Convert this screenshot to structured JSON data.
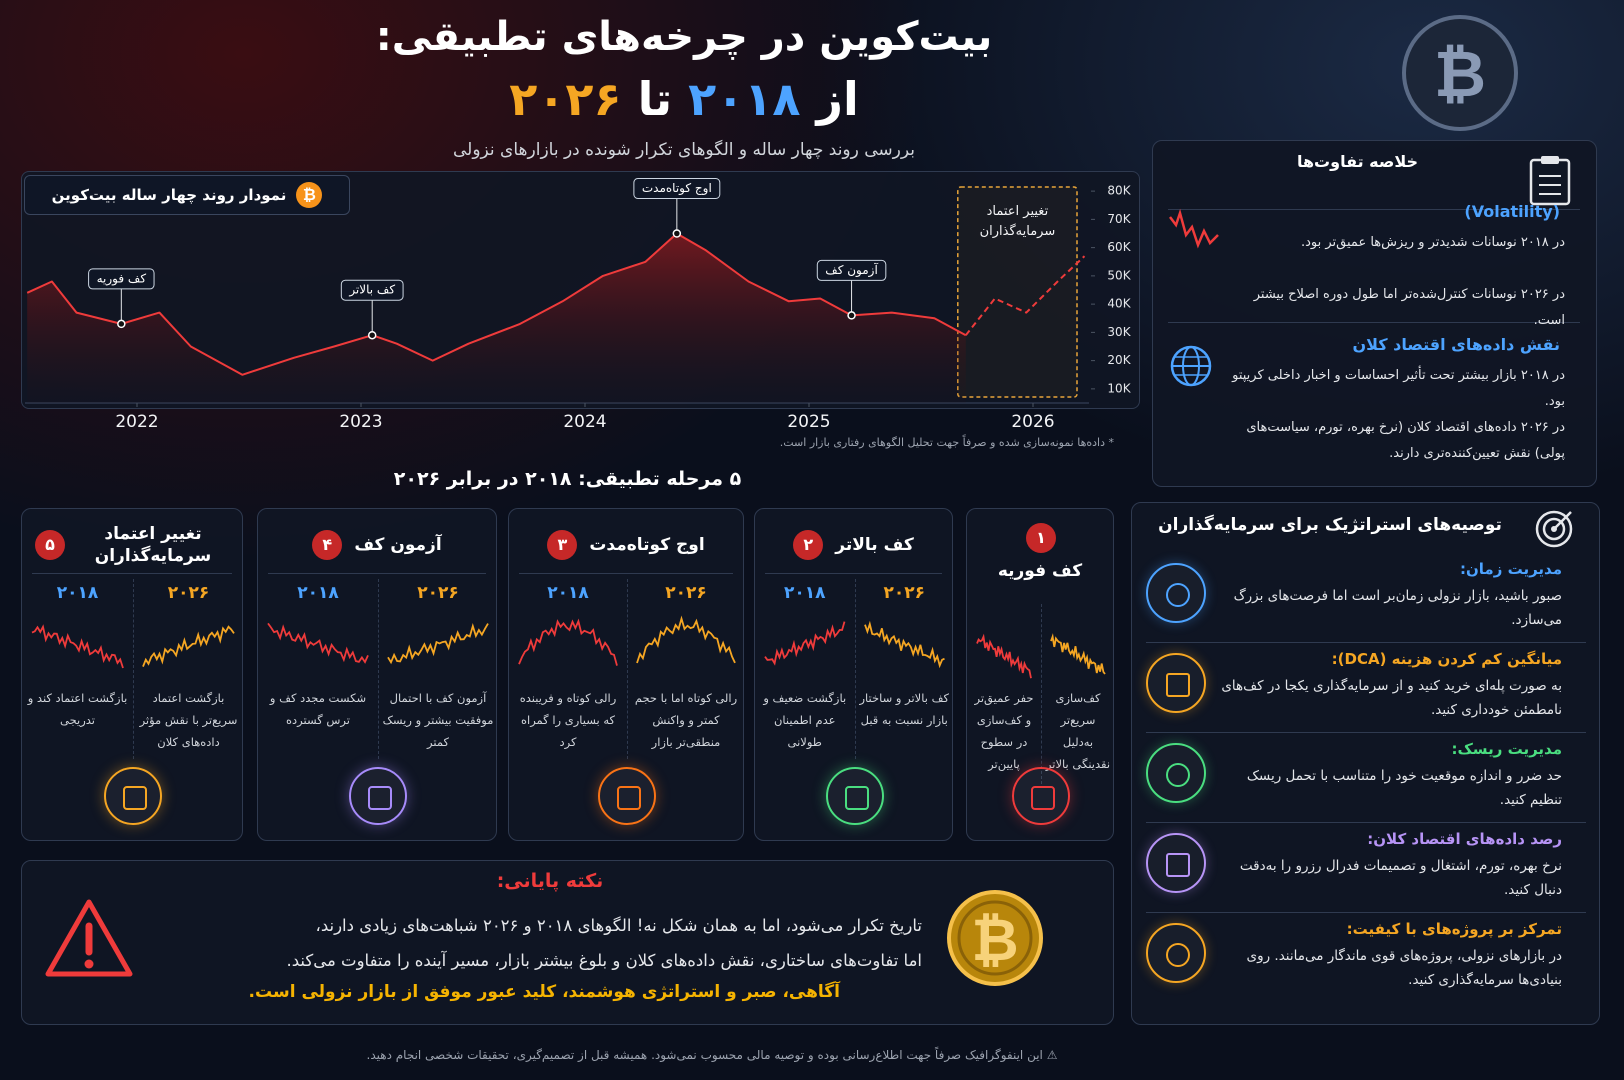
{
  "header": {
    "title": "بیت‌کوین در چرخه‌های تطبیقی:",
    "title_from": "از",
    "year_start": "۲۰۱۸",
    "title_to": "تا",
    "year_end": "۲۰۲۶",
    "subtitle": "بررسی روند چهار ساله و الگوهای تکرار شونده در بازارهای نزولی"
  },
  "chart_data": {
    "type": "line",
    "title": "نمودار روند چهار ساله بیت‌کوین",
    "note": "* داده‌ها نمونه‌سازی شده و صرفاً جهت تحلیل الگوهای رفتاری بازار است.",
    "x": [
      2021.51,
      2021.62,
      2021.73,
      2021.93,
      2022.1,
      2022.24,
      2022.47,
      2022.7,
      2022.88,
      2023.05,
      2023.16,
      2023.32,
      2023.48,
      2023.71,
      2023.9,
      2024.08,
      2024.27,
      2024.41,
      2024.54,
      2024.73,
      2024.91,
      2025.05,
      2025.19,
      2025.37,
      2025.56,
      2025.7,
      2025.83,
      2025.97,
      2026.11,
      2026.23
    ],
    "series": [
      {
        "color": "#ef3b3b",
        "values": [
          44000,
          48000,
          37000,
          33000,
          37000,
          25000,
          15000,
          21000,
          25000,
          29000,
          26000,
          20000,
          26000,
          33000,
          41000,
          50000,
          55000,
          65000,
          59000,
          48000,
          41000,
          42000,
          36000,
          37000,
          35000,
          29000,
          null,
          null,
          null,
          null
        ]
      },
      {
        "color": "#ef3b3b",
        "dashed": true,
        "values": [
          null,
          null,
          null,
          null,
          null,
          null,
          null,
          null,
          null,
          null,
          null,
          null,
          null,
          null,
          null,
          null,
          null,
          null,
          null,
          null,
          null,
          null,
          null,
          null,
          null,
          29000,
          42000,
          37000,
          48000,
          57000
        ]
      }
    ],
    "xlim": [
      2021.5,
      2026.25
    ],
    "xticks": [
      2022,
      2023,
      2024,
      2025,
      2026
    ],
    "ylim": [
      5000,
      85000
    ],
    "yticks": [
      {
        "value": 10000,
        "label": "10K"
      },
      {
        "value": 20000,
        "label": "20K"
      },
      {
        "value": 30000,
        "label": "30K"
      },
      {
        "value": 40000,
        "label": "40K"
      },
      {
        "value": 50000,
        "label": "50K"
      },
      {
        "value": 60000,
        "label": "60K"
      },
      {
        "value": 70000,
        "label": "70K"
      },
      {
        "value": 80000,
        "label": "80K"
      }
    ],
    "grid": false,
    "annotations": [
      {
        "text": "کف فوریه",
        "x": 2021.93,
        "y": 33000
      },
      {
        "text": "کف بالاتر",
        "x": 2023.05,
        "y": 29000
      },
      {
        "text": "اوج کوتاه‌مدت",
        "x": 2024.41,
        "y": 65000
      },
      {
        "text": "آزمون کف",
        "x": 2025.19,
        "y": 36000
      }
    ],
    "projection_label": [
      "تغییر اعتماد",
      "سرمایه‌گذاران"
    ]
  },
  "summary": {
    "title": "خلاصه تفاوت‌ها",
    "items": [
      {
        "heading": "(Volatility)",
        "lines": [
          "در ۲۰۱۸ نوسانات شدیدتر و ریزش‌ها عمیق‌تر بود.",
          "در ۲۰۲۶ نوسانات کنترل‌شده‌تر اما طول دوره اصلاح بیشتر است."
        ]
      },
      {
        "heading": "نقش داده‌های اقتصاد کلان",
        "lines": [
          "در ۲۰۱۸ بازار بیشتر تحت تأثیر احساسات و اخبار داخلی کریپتو بود.",
          "در ۲۰۲۶ داده‌های اقتصاد کلان (نرخ بهره، تورم، سیاست‌های پولی) نقش تعیین‌کننده‌تری دارند."
        ]
      }
    ]
  },
  "stages": {
    "title": "۵ مرحله تطبیقی: ۲۰۱۸ در برابر ۲۰۲۶",
    "items": [
      {
        "number": "۱",
        "title": "کف فوریه",
        "text_2026": "کف‌سازی سریع‌تر به‌دلیل نقدینگی بالاتر",
        "text_2018": "حفر عمیق‌تر و کف‌سازی در سطوح پایین‌تر"
      },
      {
        "number": "۲",
        "title": "کف بالاتر",
        "text_2026": "کف بالاتر و ساختار بازار نسبت به قبل",
        "text_2018": "بازگشت ضعیف و عدم اطمینان طولانی"
      },
      {
        "number": "۳",
        "title": "اوج کوتاه‌مدت",
        "text_2026": "رالی کوتاه اما با حجم کمتر و واکنش منطقی‌تر بازار",
        "text_2018": "رالی کوتاه و فریبنده که بسیاری را گمراه کرد"
      },
      {
        "number": "۴",
        "title": "آزمون کف",
        "text_2026": "آزمون کف با احتمال موفقیت بیشتر و ریسک کمتر",
        "text_2018": "شکست مجدد کف و ترس گسترده"
      },
      {
        "number": "۵",
        "title": "تغییر اعتماد سرمایه‌گذاران",
        "text_2026": "بازگشت اعتماد سریع‌تر با نقش مؤثر داده‌های کلان",
        "text_2018": "بازگشت اعتماد کند و تدریجی"
      }
    ]
  },
  "recommendations": {
    "title": "توصیه‌های استراتژیک برای سرمایه‌گذاران",
    "items": [
      {
        "title": "مدیریت زمان:",
        "text": "صبور باشید، بازار نزولی زمان‌بر است اما فرصت‌های بزرگ می‌سازد.",
        "color": "#4da3ff"
      },
      {
        "title": "میانگین کم کردن هزینه (DCA):",
        "text": "به صورت پله‌ای خرید کنید و از سرمایه‌گذاری یکجا در کف‌های نامطمئن خودداری کنید.",
        "color": "#f5a623"
      },
      {
        "title": "مدیریت ریسک:",
        "text": "حد ضرر و اندازه موقعیت خود را متناسب با تحمل ریسک تنظیم کنید.",
        "color": "#4ade80"
      },
      {
        "title": "رصد داده‌های اقتصاد کلان:",
        "text": "نرخ بهره، تورم، اشتغال و تصمیمات فدرال رزرو را به‌دقت دنبال کنید.",
        "color": "#b794f6"
      },
      {
        "title": "تمرکز بر پروژه‌های با کیفیت:",
        "text": "در بازارهای نزولی، پروژه‌های قوی ماندگار می‌مانند. روی بنیادی‌ها سرمایه‌گذاری کنید.",
        "color": "#f5a623"
      }
    ]
  },
  "final_note": {
    "title": "نکته پایانی:",
    "lines": [
      "تاریخ تکرار می‌شود، اما به همان شکل نه! الگوهای ۲۰۱۸ و ۲۰۲۶ شباهت‌های زیادی دارند،",
      "اما تفاوت‌های ساختاری، نقش داده‌های کلان و بلوغ بیشتر بازار، مسیر آینده را متفاوت می‌کند."
    ],
    "highlight": "آگاهی، صبر و استراتژی هوشمند، کلید عبور موفق از بازار نزولی است."
  },
  "disclaimer": "این اینفوگرافیک صرفاً جهت اطلاع‌رسانی بوده و توصیه مالی محسوب نمی‌شود. همیشه قبل از تصمیم‌گیری، تحقیقات شخصی انجام دهید."
}
